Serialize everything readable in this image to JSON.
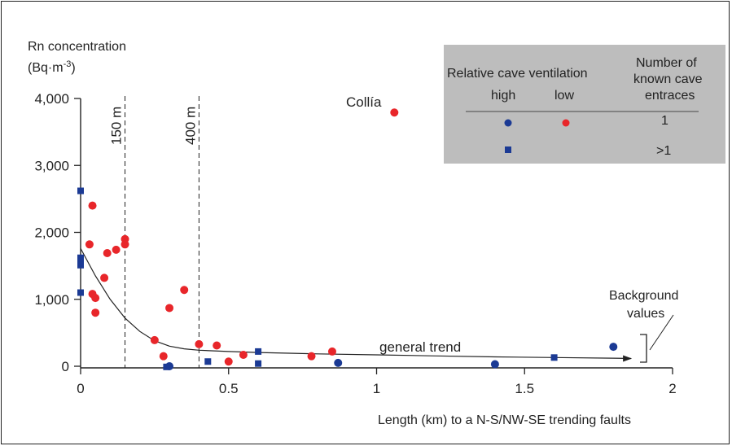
{
  "chart_data": {
    "type": "scatter",
    "ylabel_line1": "Rn concentration",
    "ylabel_line2_base": "(Bq·m",
    "ylabel_line2_sup": "-3",
    "ylabel_line2_end": ")",
    "xlabel": "Length (km) to a N-S/NW-SE trending faults",
    "xlim": [
      0,
      2
    ],
    "ylim": [
      0,
      4000
    ],
    "x_ticks": [
      0,
      0.5,
      1,
      1.5,
      2
    ],
    "x_tick_labels": [
      "0",
      "0.5",
      "1",
      "1.5",
      "2"
    ],
    "y_ticks": [
      0,
      1000,
      2000,
      3000,
      4000
    ],
    "y_tick_labels": [
      "0",
      "1,000",
      "2,000",
      "3,000",
      "4,000"
    ],
    "reference_lines": [
      {
        "x": 0.15,
        "label": "150 m"
      },
      {
        "x": 0.4,
        "label": "400 m"
      }
    ],
    "trend": {
      "label": "general trend",
      "points": [
        [
          0,
          1760
        ],
        [
          0.05,
          1350
        ],
        [
          0.1,
          1000
        ],
        [
          0.15,
          720
        ],
        [
          0.2,
          520
        ],
        [
          0.25,
          380
        ],
        [
          0.3,
          300
        ],
        [
          0.35,
          260
        ],
        [
          0.4,
          240
        ],
        [
          0.5,
          220
        ],
        [
          0.6,
          205
        ],
        [
          0.8,
          185
        ],
        [
          1.0,
          170
        ],
        [
          1.2,
          155
        ],
        [
          1.4,
          140
        ],
        [
          1.6,
          130
        ],
        [
          1.8,
          120
        ],
        [
          1.86,
          115
        ]
      ]
    },
    "annotations": {
      "collia": "Collía",
      "background": [
        "Background",
        "values"
      ]
    },
    "legend": {
      "header": "Relative cave ventilation",
      "high": "high",
      "low": "low",
      "entrances_header": [
        "Number of",
        "known cave",
        "entraces"
      ],
      "row1": "1",
      "row2": ">1"
    },
    "colors": {
      "red": "#e8262a",
      "blue": "#1b3a94",
      "legend_bg": "#bdbdbd"
    },
    "series": [
      {
        "ventilation": "low",
        "marker": "circle",
        "color": "red",
        "points": [
          [
            1.06,
            3790
          ],
          [
            0.04,
            2400
          ],
          [
            0.15,
            1900
          ],
          [
            0.15,
            1820
          ],
          [
            0.03,
            1820
          ],
          [
            0.12,
            1740
          ],
          [
            0.09,
            1690
          ],
          [
            0.08,
            1320
          ],
          [
            0.35,
            1140
          ],
          [
            0.04,
            1080
          ],
          [
            0.05,
            1020
          ],
          [
            0.3,
            870
          ],
          [
            0.05,
            800
          ],
          [
            0.25,
            390
          ],
          [
            0.4,
            330
          ],
          [
            0.46,
            310
          ],
          [
            0.85,
            220
          ],
          [
            0.55,
            170
          ],
          [
            0.78,
            150
          ],
          [
            0.28,
            150
          ],
          [
            0.5,
            70
          ]
        ]
      },
      {
        "ventilation": "high",
        "marker": "circle",
        "color": "blue",
        "points": [
          [
            1.8,
            290
          ],
          [
            0.87,
            50
          ],
          [
            1.4,
            30
          ],
          [
            0.3,
            0
          ]
        ]
      },
      {
        "ventilation": "high",
        "marker": "square",
        "color": "blue",
        "points": [
          [
            0,
            2620
          ],
          [
            0,
            1620
          ],
          [
            0,
            1570
          ],
          [
            0,
            1510
          ],
          [
            0,
            1100
          ],
          [
            0.6,
            220
          ],
          [
            0.43,
            70
          ],
          [
            0.6,
            40
          ],
          [
            0.29,
            -10
          ],
          [
            1.6,
            130
          ]
        ]
      }
    ]
  }
}
